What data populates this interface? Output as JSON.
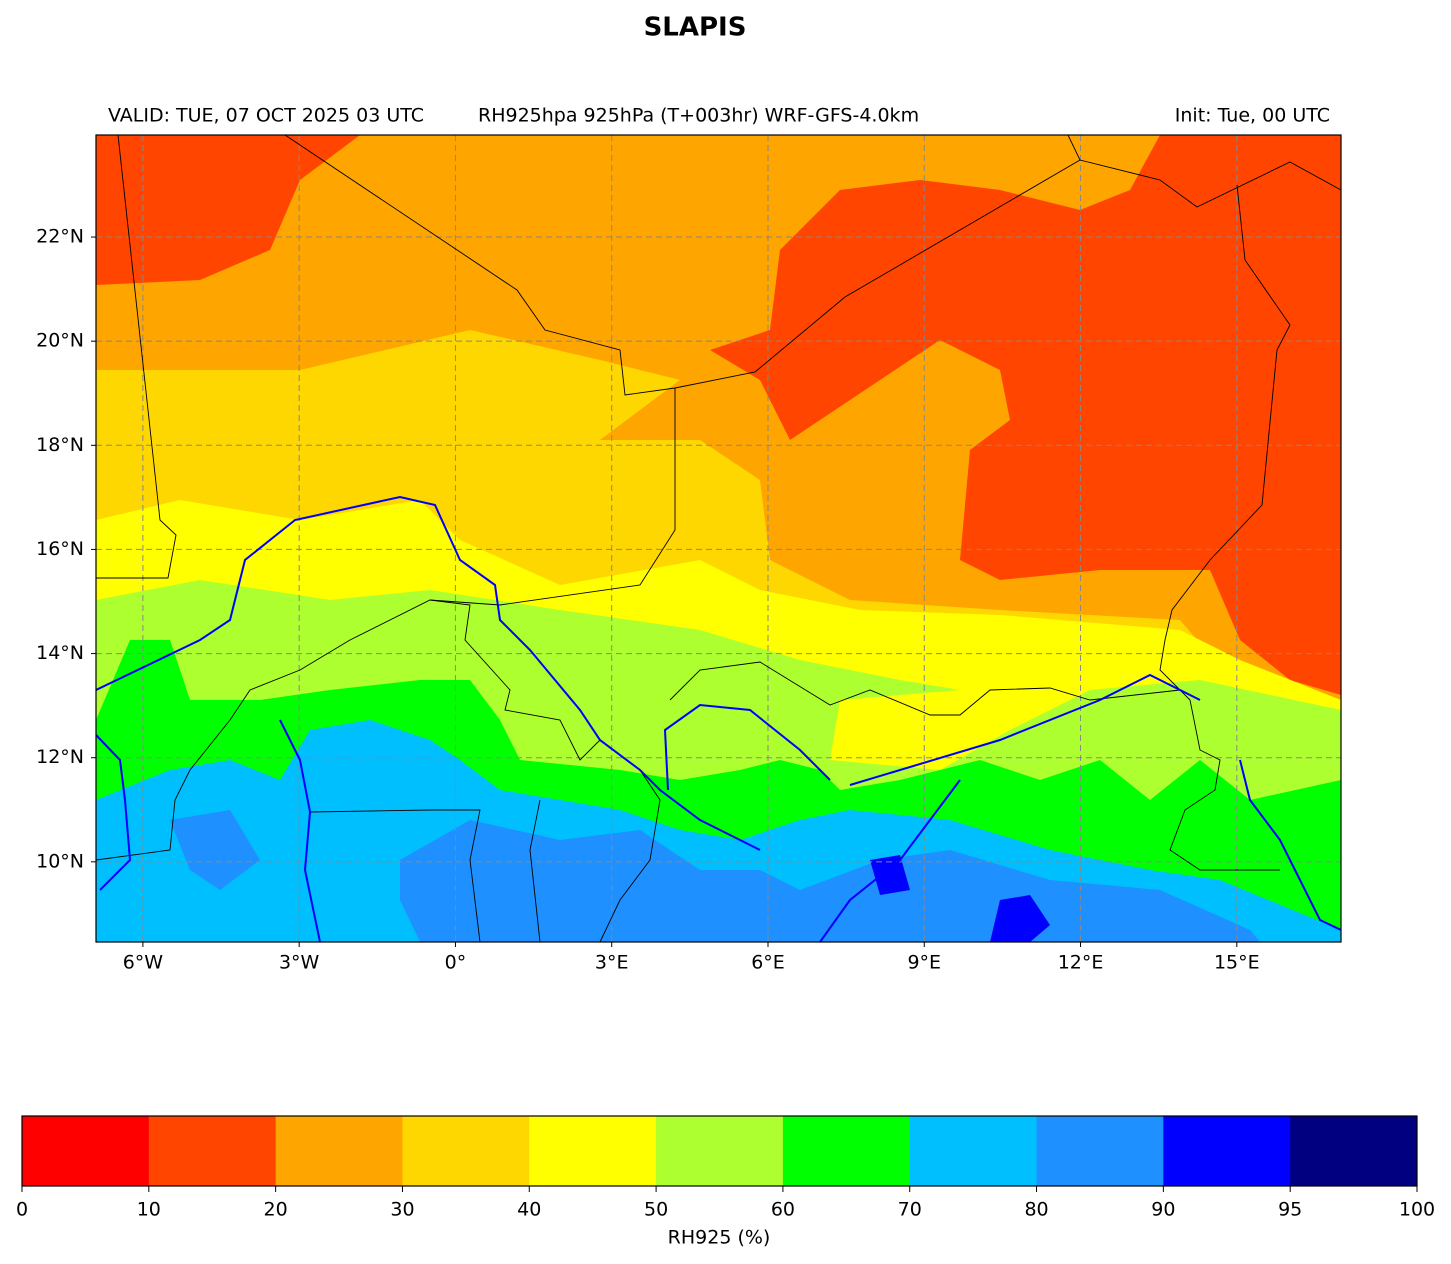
{
  "title": "SLAPIS",
  "valid": "VALID: TUE, 07 OCT 2025 03 UTC",
  "product": "RH925hpa 925hPa (T+003hr) WRF-GFS-4.0km",
  "init": "Init: Tue, 00 UTC",
  "map": {
    "xlim": [
      -6.9,
      17
    ],
    "ylim": [
      8.46,
      23.96
    ],
    "xticks": [
      {
        "value": -6,
        "label": "6°W"
      },
      {
        "value": -3,
        "label": "3°W"
      },
      {
        "value": 0,
        "label": "0°"
      },
      {
        "value": 3,
        "label": "3°E"
      },
      {
        "value": 6,
        "label": "6°E"
      },
      {
        "value": 9,
        "label": "9°E"
      },
      {
        "value": 12,
        "label": "12°E"
      },
      {
        "value": 15,
        "label": "15°E"
      }
    ],
    "yticks": [
      {
        "value": 10,
        "label": "10°N"
      },
      {
        "value": 12,
        "label": "12°N"
      },
      {
        "value": 14,
        "label": "14°N"
      },
      {
        "value": 16,
        "label": "16°N"
      },
      {
        "value": 18,
        "label": "18°N"
      },
      {
        "value": 20,
        "label": "20°N"
      },
      {
        "value": 22,
        "label": "22°N"
      }
    ],
    "grid": true
  },
  "colorbar": {
    "label": "RH925 (%)",
    "ticks": [
      0,
      10,
      20,
      30,
      40,
      50,
      60,
      70,
      80,
      90,
      95,
      100
    ],
    "colors": [
      "#ff0000",
      "#ff4500",
      "#ffa500",
      "#ffd700",
      "#ffff00",
      "#adff2f",
      "#00ff00",
      "#00bfff",
      "#1e90ff",
      "#0000ff",
      "#000080"
    ]
  }
}
